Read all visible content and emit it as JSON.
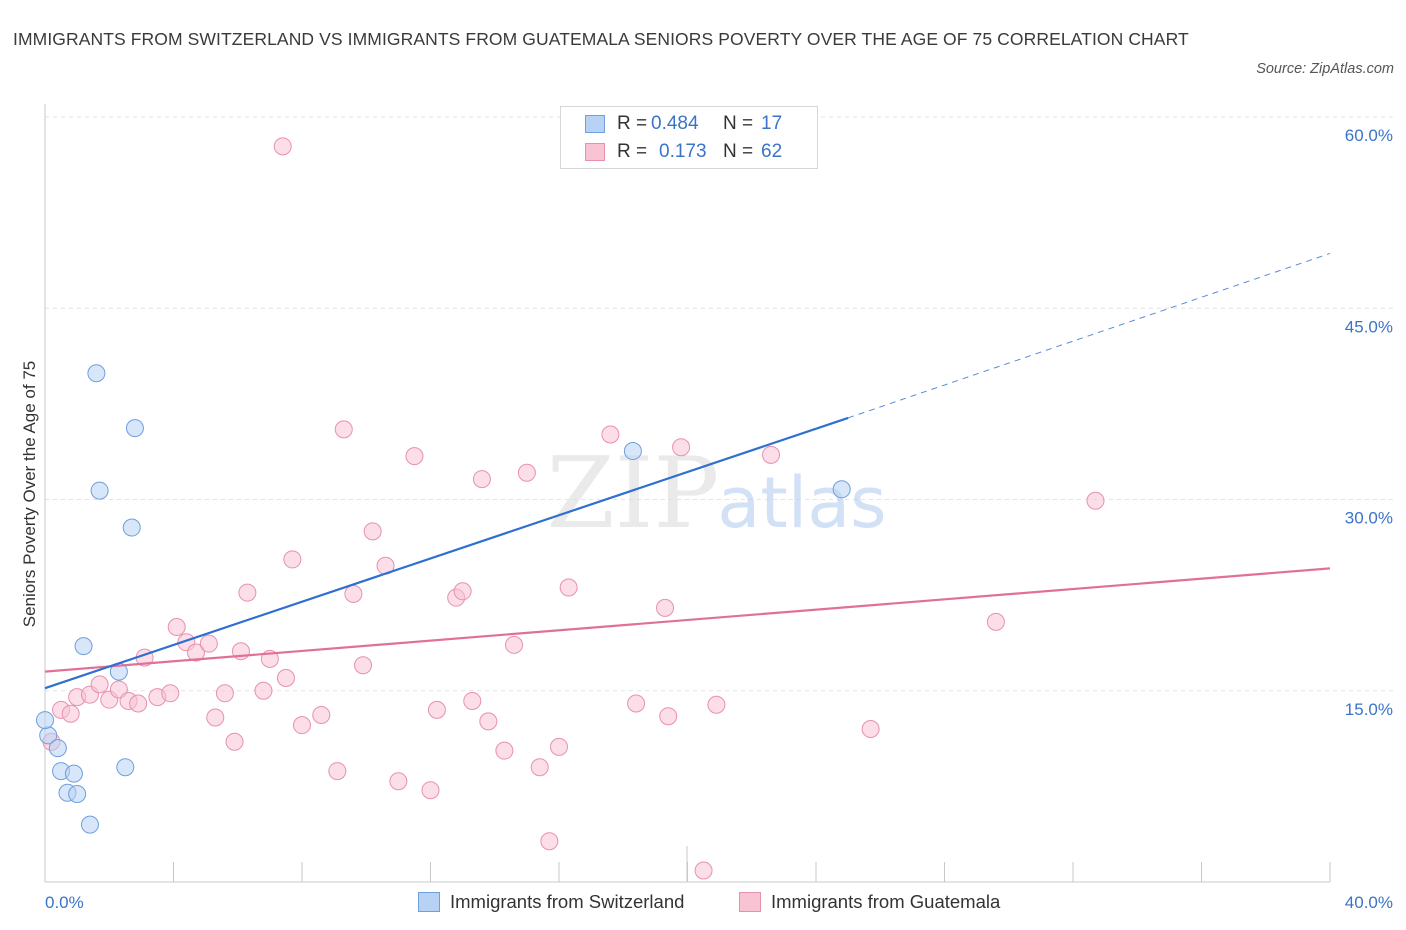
{
  "header": {
    "title": "IMMIGRANTS FROM SWITZERLAND VS IMMIGRANTS FROM GUATEMALA SENIORS POVERTY OVER THE AGE OF 75 CORRELATION CHART",
    "source": "Source: ZipAtlas.com"
  },
  "watermark": {
    "zip": "ZIP",
    "atlas": "atlas"
  },
  "legend": {
    "rows": [
      {
        "r_label": "R =",
        "r_value": "0.484",
        "n_label": "N =",
        "n_value": "17"
      },
      {
        "r_label": "R =",
        "r_value": "0.173",
        "n_label": "N =",
        "n_value": "62"
      }
    ]
  },
  "colors": {
    "switzerland_fill": "#b8d2f5",
    "switzerland_stroke": "#6f9fdc",
    "switzerland_line": "#2f6fd0",
    "guatemala_fill": "#f8c3d3",
    "guatemala_stroke": "#e891ad",
    "guatemala_line": "#e0709a",
    "axis_text": "#3a74c9",
    "grid": "#e4e4e4"
  },
  "chart_data": {
    "type": "scatter",
    "title": "IMMIGRANTS FROM SWITZERLAND VS IMMIGRANTS FROM GUATEMALA SENIORS POVERTY OVER THE AGE OF 75 CORRELATION CHART",
    "xlabel": "",
    "ylabel": "Seniors Poverty Over the Age of 75",
    "xlim": [
      0,
      40
    ],
    "ylim": [
      0,
      60
    ],
    "x_tick_labels": [
      "0.0%",
      "40.0%"
    ],
    "y_ticks": [
      15,
      30,
      45,
      60
    ],
    "y_tick_labels": [
      "15.0%",
      "30.0%",
      "45.0%",
      "60.0%"
    ],
    "grid": true,
    "legend_position": "top-center",
    "series": [
      {
        "name": "Immigrants from Switzerland",
        "r": 0.484,
        "n": 17,
        "points": [
          [
            0.1,
            11.5
          ],
          [
            0.4,
            10.5
          ],
          [
            0.5,
            8.7
          ],
          [
            0.7,
            7.0
          ],
          [
            0.9,
            8.5
          ],
          [
            1.0,
            6.9
          ],
          [
            1.2,
            18.5
          ],
          [
            1.4,
            4.5
          ],
          [
            1.6,
            39.9
          ],
          [
            1.7,
            30.7
          ],
          [
            2.3,
            16.5
          ],
          [
            2.5,
            9.0
          ],
          [
            2.7,
            27.8
          ],
          [
            2.8,
            35.6
          ],
          [
            18.3,
            33.8
          ],
          [
            24.8,
            30.8
          ],
          [
            0.0,
            12.7
          ]
        ],
        "trend": {
          "x": [
            0,
            25
          ],
          "y": [
            15.2,
            36.4
          ]
        },
        "trend_extension": {
          "x": [
            25,
            40
          ],
          "y": [
            36.4,
            49.3
          ]
        }
      },
      {
        "name": "Immigrants from Guatemala",
        "r": 0.173,
        "n": 62,
        "points": [
          [
            0.2,
            11.0
          ],
          [
            0.5,
            13.5
          ],
          [
            0.8,
            13.2
          ],
          [
            1.0,
            14.5
          ],
          [
            1.4,
            14.7
          ],
          [
            1.7,
            15.5
          ],
          [
            2.0,
            14.3
          ],
          [
            2.3,
            15.1
          ],
          [
            2.6,
            14.2
          ],
          [
            2.9,
            14.0
          ],
          [
            3.1,
            17.6
          ],
          [
            3.5,
            14.5
          ],
          [
            3.9,
            14.8
          ],
          [
            4.1,
            20.0
          ],
          [
            4.4,
            18.8
          ],
          [
            4.7,
            18.0
          ],
          [
            5.1,
            18.7
          ],
          [
            5.3,
            12.9
          ],
          [
            5.6,
            14.8
          ],
          [
            5.9,
            11.0
          ],
          [
            6.1,
            18.1
          ],
          [
            6.3,
            22.7
          ],
          [
            6.8,
            15.0
          ],
          [
            7.0,
            17.5
          ],
          [
            7.5,
            16.0
          ],
          [
            7.7,
            25.3
          ],
          [
            8.0,
            12.3
          ],
          [
            8.6,
            13.1
          ],
          [
            9.1,
            8.7
          ],
          [
            9.3,
            35.5
          ],
          [
            9.6,
            22.6
          ],
          [
            9.9,
            17.0
          ],
          [
            10.2,
            27.5
          ],
          [
            10.6,
            24.8
          ],
          [
            11.0,
            7.9
          ],
          [
            11.5,
            33.4
          ],
          [
            12.0,
            7.2
          ],
          [
            12.2,
            13.5
          ],
          [
            12.8,
            22.3
          ],
          [
            13.0,
            22.8
          ],
          [
            13.3,
            14.2
          ],
          [
            13.6,
            31.6
          ],
          [
            13.8,
            12.6
          ],
          [
            14.3,
            10.3
          ],
          [
            14.6,
            18.6
          ],
          [
            15.0,
            32.1
          ],
          [
            15.4,
            9.0
          ],
          [
            15.7,
            3.2
          ],
          [
            16.0,
            10.6
          ],
          [
            16.3,
            23.1
          ],
          [
            17.6,
            35.1
          ],
          [
            18.4,
            14.0
          ],
          [
            19.3,
            21.5
          ],
          [
            19.4,
            13.0
          ],
          [
            19.8,
            34.1
          ],
          [
            20.5,
            0.9
          ],
          [
            20.9,
            13.9
          ],
          [
            22.6,
            33.5
          ],
          [
            25.7,
            12.0
          ],
          [
            29.6,
            20.4
          ],
          [
            32.7,
            29.9
          ],
          [
            7.4,
            57.7
          ]
        ],
        "trend": {
          "x": [
            0,
            40
          ],
          "y": [
            16.5,
            24.6
          ]
        }
      }
    ]
  },
  "bottom_legend": {
    "items": [
      {
        "label": "Immigrants from Switzerland"
      },
      {
        "label": "Immigrants from Guatemala"
      }
    ]
  }
}
